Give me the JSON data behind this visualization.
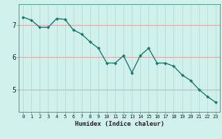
{
  "x": [
    0,
    1,
    2,
    3,
    4,
    5,
    6,
    7,
    8,
    9,
    10,
    11,
    12,
    13,
    14,
    15,
    16,
    17,
    18,
    19,
    20,
    21,
    22,
    23
  ],
  "y": [
    7.25,
    7.15,
    6.93,
    6.93,
    7.2,
    7.18,
    6.85,
    6.72,
    6.48,
    6.28,
    5.82,
    5.82,
    6.05,
    5.52,
    6.05,
    6.28,
    5.82,
    5.82,
    5.72,
    5.45,
    5.28,
    5.0,
    4.78,
    4.6
  ],
  "xlabel": "Humidex (Indice chaleur)",
  "line_color": "#1a7a6e",
  "marker_color": "#1a7a6e",
  "bg_color": "#cff0eb",
  "grid_h_color": "#d4aaaa",
  "grid_v_color": "#b8ddd8",
  "ylim": [
    4.3,
    7.65
  ],
  "xlim": [
    -0.5,
    23.5
  ],
  "yticks": [
    5,
    6,
    7
  ],
  "xticks": [
    0,
    1,
    2,
    3,
    4,
    5,
    6,
    7,
    8,
    9,
    10,
    11,
    12,
    13,
    14,
    15,
    16,
    17,
    18,
    19,
    20,
    21,
    22,
    23
  ],
  "xlabel_fontsize": 6.5,
  "ylabel_fontsize": 7,
  "xtick_fontsize": 5.0,
  "ytick_fontsize": 7.0
}
